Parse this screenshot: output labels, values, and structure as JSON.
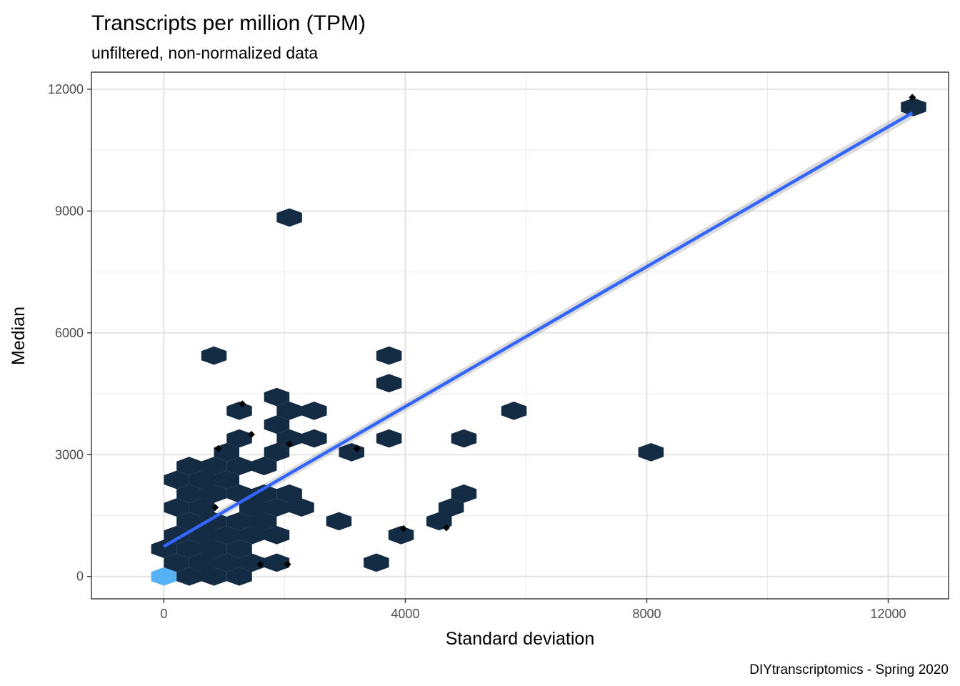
{
  "chart_data": {
    "type": "hexbin",
    "title": "Transcripts per million (TPM)",
    "subtitle": "unfiltered, non-normalized data",
    "xlabel": "Standard deviation",
    "ylabel": "Median",
    "caption": "DIYtranscriptomics - Spring 2020",
    "xlim": [
      -1200,
      13000
    ],
    "ylim": [
      -550,
      12420
    ],
    "x_ticks": [
      0,
      4000,
      8000,
      12000
    ],
    "y_ticks": [
      0,
      3000,
      6000,
      9000,
      12000
    ],
    "x_tick_labels": [
      "0",
      "4000",
      "8000",
      "12000"
    ],
    "y_tick_labels": [
      "0",
      "3000",
      "6000",
      "9000",
      "12000"
    ],
    "grid": true,
    "hex_fill_default": "#132b43",
    "hex_fill_high": "#56b1f7",
    "hexbins": [
      {
        "x": 0,
        "y": 0,
        "high": true
      },
      {
        "x": 420,
        "y": 0
      },
      {
        "x": 830,
        "y": 0
      },
      {
        "x": 1250,
        "y": 0
      },
      {
        "x": 210,
        "y": 340
      },
      {
        "x": 630,
        "y": 340
      },
      {
        "x": 1040,
        "y": 340
      },
      {
        "x": 1460,
        "y": 340
      },
      {
        "x": 1870,
        "y": 340
      },
      {
        "x": 0,
        "y": 680
      },
      {
        "x": 420,
        "y": 680
      },
      {
        "x": 830,
        "y": 680
      },
      {
        "x": 1250,
        "y": 680
      },
      {
        "x": 210,
        "y": 1020
      },
      {
        "x": 630,
        "y": 1020
      },
      {
        "x": 1040,
        "y": 1020
      },
      {
        "x": 1460,
        "y": 1020
      },
      {
        "x": 1870,
        "y": 1020
      },
      {
        "x": 420,
        "y": 1360
      },
      {
        "x": 830,
        "y": 1360
      },
      {
        "x": 1250,
        "y": 1360
      },
      {
        "x": 1660,
        "y": 1360
      },
      {
        "x": 210,
        "y": 1700
      },
      {
        "x": 630,
        "y": 1700
      },
      {
        "x": 1460,
        "y": 1700
      },
      {
        "x": 1870,
        "y": 1700
      },
      {
        "x": 2280,
        "y": 1700
      },
      {
        "x": 420,
        "y": 2040
      },
      {
        "x": 830,
        "y": 2040
      },
      {
        "x": 1250,
        "y": 2040
      },
      {
        "x": 1660,
        "y": 2040
      },
      {
        "x": 2080,
        "y": 2040
      },
      {
        "x": 210,
        "y": 2380
      },
      {
        "x": 630,
        "y": 2380
      },
      {
        "x": 1040,
        "y": 2380
      },
      {
        "x": 420,
        "y": 2720
      },
      {
        "x": 830,
        "y": 2720
      },
      {
        "x": 1250,
        "y": 2720
      },
      {
        "x": 1660,
        "y": 2720
      },
      {
        "x": 1040,
        "y": 3060
      },
      {
        "x": 1870,
        "y": 3060
      },
      {
        "x": 3110,
        "y": 3060
      },
      {
        "x": 8070,
        "y": 3060
      },
      {
        "x": 1250,
        "y": 3400
      },
      {
        "x": 2080,
        "y": 3400
      },
      {
        "x": 2490,
        "y": 3400
      },
      {
        "x": 3730,
        "y": 3400
      },
      {
        "x": 4970,
        "y": 3400
      },
      {
        "x": 1870,
        "y": 3740
      },
      {
        "x": 1250,
        "y": 4080
      },
      {
        "x": 2080,
        "y": 4080
      },
      {
        "x": 2490,
        "y": 4080
      },
      {
        "x": 5800,
        "y": 4080
      },
      {
        "x": 1870,
        "y": 4420
      },
      {
        "x": 3730,
        "y": 4760
      },
      {
        "x": 830,
        "y": 5440
      },
      {
        "x": 3730,
        "y": 5440
      },
      {
        "x": 2080,
        "y": 8840
      },
      {
        "x": 12420,
        "y": 11560
      },
      {
        "x": 2900,
        "y": 1360
      },
      {
        "x": 4560,
        "y": 1360
      },
      {
        "x": 4760,
        "y": 1700
      },
      {
        "x": 4970,
        "y": 2040
      },
      {
        "x": 3930,
        "y": 1020
      },
      {
        "x": 3520,
        "y": 340
      }
    ],
    "points": [
      {
        "x": 2050,
        "y": 300
      },
      {
        "x": 1600,
        "y": 300
      },
      {
        "x": 12400,
        "y": 11800
      },
      {
        "x": 1300,
        "y": 4250
      },
      {
        "x": 1450,
        "y": 3500
      },
      {
        "x": 900,
        "y": 3150
      },
      {
        "x": 3200,
        "y": 3150
      },
      {
        "x": 3970,
        "y": 1180
      },
      {
        "x": 4680,
        "y": 1200
      },
      {
        "x": 850,
        "y": 1700
      },
      {
        "x": 2080,
        "y": 3260
      }
    ],
    "fit_line": {
      "x": [
        0,
        12400
      ],
      "y": [
        740,
        11420
      ],
      "color": "#3366ff"
    }
  }
}
